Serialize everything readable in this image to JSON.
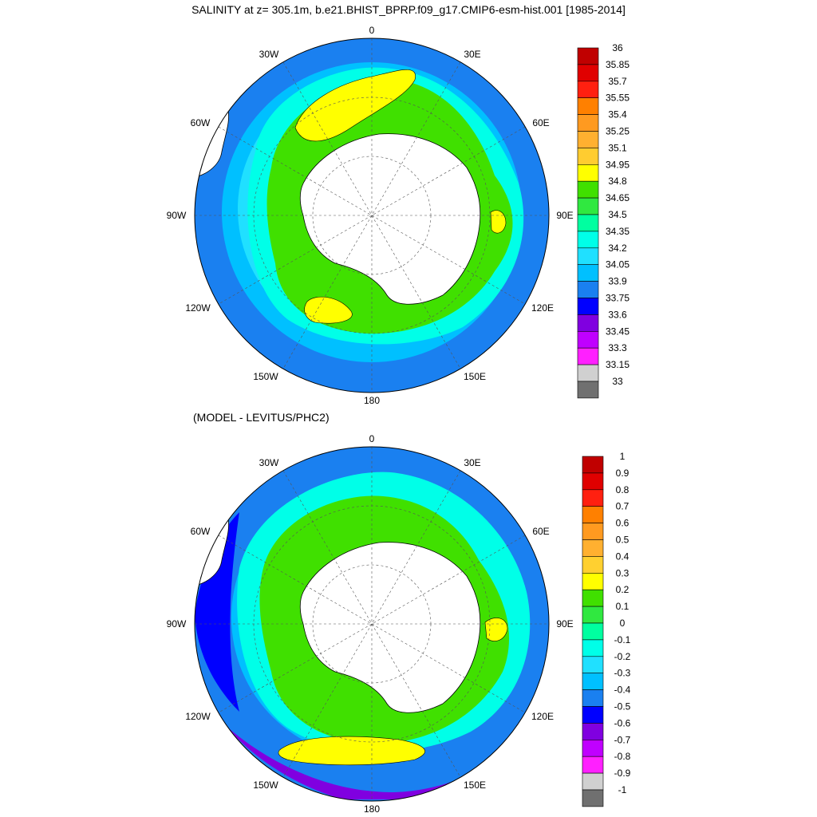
{
  "title": "SALINITY at z= 305.1m, b.e21.BHIST_BPRP.f09_g17.CMIP6-esm-hist.001 [1985-2014]",
  "subtitle": "(MODEL - LEVITUS/PHC2)",
  "longitude_labels": {
    "lon_0": "0",
    "lon_30e": "30E",
    "lon_60e": "60E",
    "lon_90e": "90E",
    "lon_120e": "120E",
    "lon_150e": "150E",
    "lon_180": "180",
    "lon_150w": "150W",
    "lon_120w": "120W",
    "lon_90w": "90W",
    "lon_60w": "60W",
    "lon_30w": "30W"
  },
  "colorbar_top": {
    "labels": [
      "36",
      "35.85",
      "35.7",
      "35.55",
      "35.4",
      "35.25",
      "35.1",
      "34.95",
      "34.8",
      "34.65",
      "34.5",
      "34.35",
      "34.2",
      "34.05",
      "33.9",
      "33.75",
      "33.6",
      "33.45",
      "33.3",
      "33.15",
      "33"
    ],
    "colors": [
      "#c00000",
      "#e00000",
      "#ff2010",
      "#ff8000",
      "#ff9a20",
      "#ffb030",
      "#ffcc30",
      "#ffff00",
      "#40e000",
      "#30e840",
      "#00ffa0",
      "#00ffe8",
      "#20e0ff",
      "#00c0ff",
      "#1a80f0",
      "#0000ff",
      "#8000e0",
      "#c000ff",
      "#ff20ff",
      "#d0d0d0",
      "#707070"
    ]
  },
  "colorbar_bottom": {
    "labels": [
      "1",
      "0.9",
      "0.8",
      "0.7",
      "0.6",
      "0.5",
      "0.4",
      "0.3",
      "0.2",
      "0.1",
      "0",
      "-0.1",
      "-0.2",
      "-0.3",
      "-0.4",
      "-0.5",
      "-0.6",
      "-0.7",
      "-0.8",
      "-0.9",
      "-1"
    ],
    "colors": [
      "#c00000",
      "#e00000",
      "#ff2010",
      "#ff8000",
      "#ff9a20",
      "#ffb030",
      "#ffd030",
      "#ffff00",
      "#40e000",
      "#30e840",
      "#00ffa0",
      "#00ffe8",
      "#20e0ff",
      "#00c0ff",
      "#1a80f0",
      "#0000ff",
      "#8000e0",
      "#c000ff",
      "#ff20ff",
      "#d0d0d0",
      "#707070"
    ]
  },
  "colors": {
    "ocean_outer": "#1a80f0",
    "ocean_mid": "#20e0ff",
    "ocean_cyan": "#00ffe8",
    "ocean_green": "#40e000",
    "ocean_yellow": "#ffff00",
    "ocean_blue": "#0000ff",
    "ocean_purple": "#8000e0",
    "ocean_magenta": "#ff20ff",
    "land": "#ffffff"
  }
}
